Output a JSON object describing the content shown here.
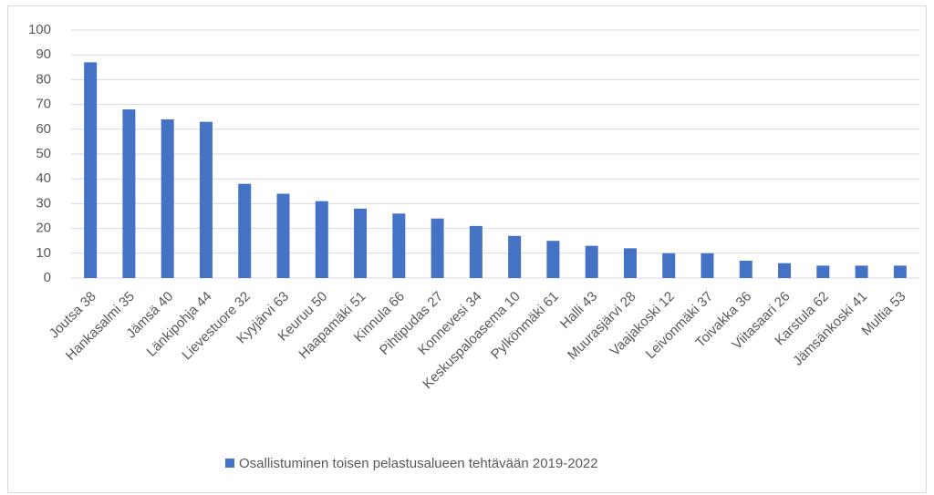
{
  "chart_data": {
    "type": "bar",
    "categories": [
      "Joutsa 38",
      "Hankasalmi 35",
      "Jämsä 40",
      "Länkipohja 44",
      "Lievestuore 32",
      "Kyyjärvi 63",
      "Keuruu 50",
      "Haapamäki 51",
      "Kinnula 66",
      "Pihtipudas 27",
      "Konnevesi 34",
      "Keskuspaloasema 10",
      "Pylkönmäki 61",
      "Halli 43",
      "Muurasjärvi 28",
      "Vaajakoski 12",
      "Leivonmäki 37",
      "Toivakka 36",
      "Viitasaari 26",
      "Karstula 62",
      "Jämsänkoski 41",
      "Multia 53"
    ],
    "series": [
      {
        "name": "Osallistuminen toisen pelastusalueen tehtävään 2019-2022",
        "color": "#4472c4",
        "values": [
          87,
          68,
          64,
          63,
          38,
          34,
          31,
          28,
          26,
          24,
          21,
          17,
          15,
          13,
          12,
          10,
          10,
          7,
          6,
          5,
          5,
          5
        ]
      }
    ],
    "ylim": [
      0,
      100
    ],
    "yticks": [
      0,
      10,
      20,
      30,
      40,
      50,
      60,
      70,
      80,
      90,
      100
    ],
    "grid": true,
    "legend": "bottom"
  }
}
